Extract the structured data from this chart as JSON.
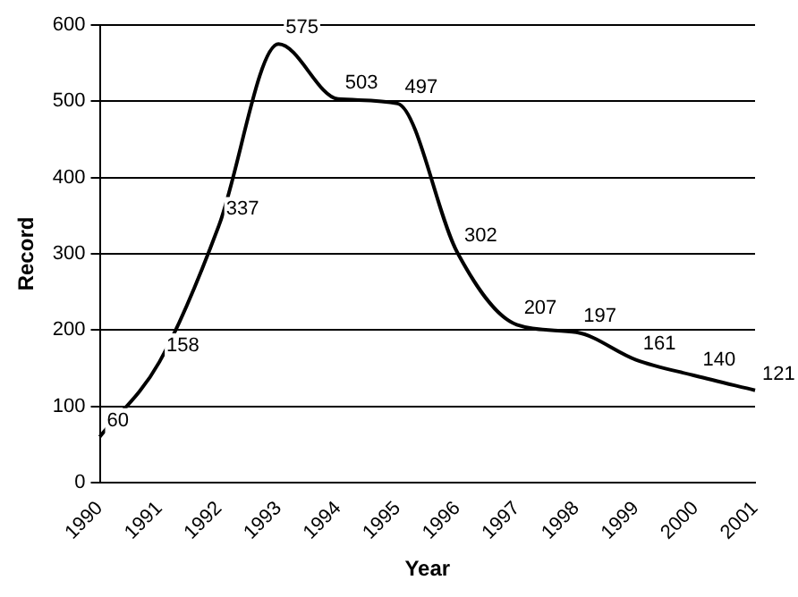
{
  "chart_data": {
    "type": "line",
    "xlabel": "Year",
    "ylabel": "Record",
    "categories": [
      "1990",
      "1991",
      "1992",
      "1993",
      "1994",
      "1995",
      "1996",
      "1997",
      "1998",
      "1999",
      "2000",
      "2001"
    ],
    "series": [
      {
        "color": "#000000",
        "values": [
          60,
          158,
          337,
          575,
          503,
          497,
          302,
          207,
          197,
          161,
          140,
          121
        ]
      }
    ],
    "ylim": [
      0,
      600
    ],
    "yticks": [
      0,
      100,
      200,
      300,
      400,
      500,
      600
    ],
    "grid": "y",
    "legend": false,
    "marker": "none",
    "line_style": "solid",
    "data_labels": true
  }
}
